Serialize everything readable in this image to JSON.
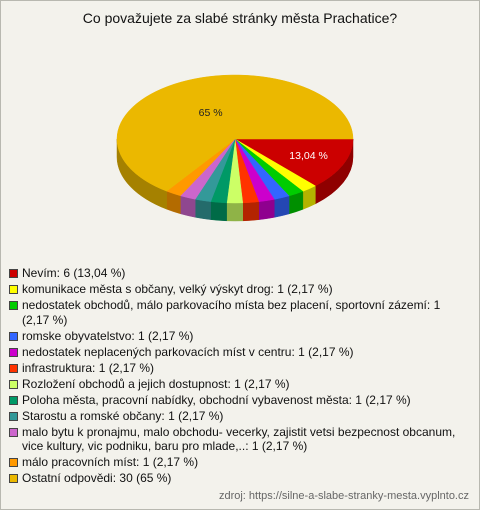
{
  "chart_data": {
    "type": "pie",
    "title": "Co považujete za slabé stránky města Prachatice?",
    "categories": [
      "Nevím: 6 (13,04 %)",
      "komunikace města s občany, velký výskyt drog: 1 (2,17 %)",
      "nedostatek obchodů, málo parkovacího místa bez placení, sportovní zázemí: 1 (2,17 %)",
      "romske obyvatelstvo: 1 (2,17 %)",
      "nedostatek neplacených parkovacích míst v centru: 1 (2,17 %)",
      "infrastruktura: 1 (2,17 %)",
      "Rozložení obchodů a jejich dostupnost: 1 (2,17 %)",
      "Poloha města, pracovní nabídky, obchodní vybavenost města: 1 (2,17 %)",
      "Starostu a romské občany: 1 (2,17 %)",
      "malo bytu k pronajmu, malo obchodu- vecerky, zajistit vetsi bezpecnost obcanum, vice kultury, vic podniku, baru pro mlade,..: 1 (2,17 %)",
      "málo pracovních míst: 1 (2,17 %)",
      "Ostatní odpovědi: 30 (65 %)"
    ],
    "values": [
      13.04,
      2.17,
      2.17,
      2.17,
      2.17,
      2.17,
      2.17,
      2.17,
      2.17,
      2.17,
      2.17,
      65
    ],
    "value_labels": [
      "13,04 %",
      null,
      null,
      null,
      null,
      null,
      null,
      null,
      null,
      null,
      null,
      "65 %"
    ],
    "colors": [
      "#cc0000",
      "#ffff00",
      "#00cc00",
      "#3366ff",
      "#cc00cc",
      "#ff3300",
      "#ccff66",
      "#009966",
      "#339999",
      "#cc66cc",
      "#ff9900",
      "#ebb800"
    ],
    "source": "zdroj: https://silne-a-slabe-stranky-mesta.vyplnto.cz"
  }
}
